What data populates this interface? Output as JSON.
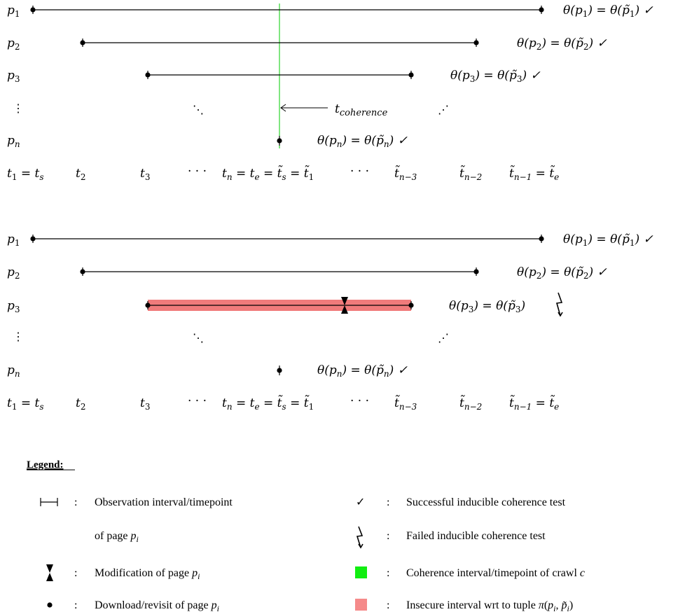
{
  "colors": {
    "line": "#000000",
    "coherence": "#00dd00",
    "insecure": "#f07b7b",
    "legend_coherence": "#11ee11",
    "legend_insecure": "#f58a8a"
  },
  "diagram_top": {
    "rows": [
      {
        "label": "p_1",
        "check": "θ(p_1) = θ(p̃_1) ✓"
      },
      {
        "label": "p_2",
        "check": "θ(p_2) = θ(p̃_2) ✓"
      },
      {
        "label": "p_3",
        "check": "θ(p_3) = θ(p̃_3) ✓"
      },
      {
        "label": "⋮"
      },
      {
        "label": "p_n",
        "check": "θ(p_n) = θ(p̃_n) ✓"
      }
    ],
    "coherence_label": "t_coherence",
    "time_axis": [
      "t_1 = t_s",
      "t_2",
      "t_3",
      "· · ·",
      "t_n = t_e = t̃_s = t̃_1",
      "· · ·",
      "t̃_{n−3}",
      "t̃_{n−2}",
      "t̃_{n−1} = t̃_e"
    ]
  },
  "diagram_bottom": {
    "rows": [
      {
        "label": "p_1",
        "check": "θ(p_1) = θ(p̃_1) ✓"
      },
      {
        "label": "p_2",
        "check": "θ(p_2) = θ(p̃_2) ✓"
      },
      {
        "label": "p_3",
        "check": "θ(p_3) = θ(p̃_3)",
        "failed": true
      },
      {
        "label": "⋮"
      },
      {
        "label": "p_n",
        "check": "θ(p_n) = θ(p̃_n) ✓"
      }
    ],
    "time_axis": [
      "t_1 = t_s",
      "t_2",
      "t_3",
      "· · ·",
      "t_n = t_e = t̃_s = t̃_1",
      "· · ·",
      "t̃_{n−3}",
      "t̃_{n−2}",
      "t̃_{n−1} = t̃_e"
    ]
  },
  "legend": {
    "title": "Legend:",
    "colon": ":",
    "observation": "Observation interval/timepoint",
    "observation_cont": "of page p_i",
    "modification": "Modification of page p_i",
    "download": "Download/revisit of page p_i",
    "success": "Successful inducible coherence test",
    "failed": "Failed inducible coherence test",
    "coherence": "Coherence interval/timepoint of crawl c",
    "insecure": "Insecure interval wrt to tuple π(p_i, p̃_i)"
  }
}
